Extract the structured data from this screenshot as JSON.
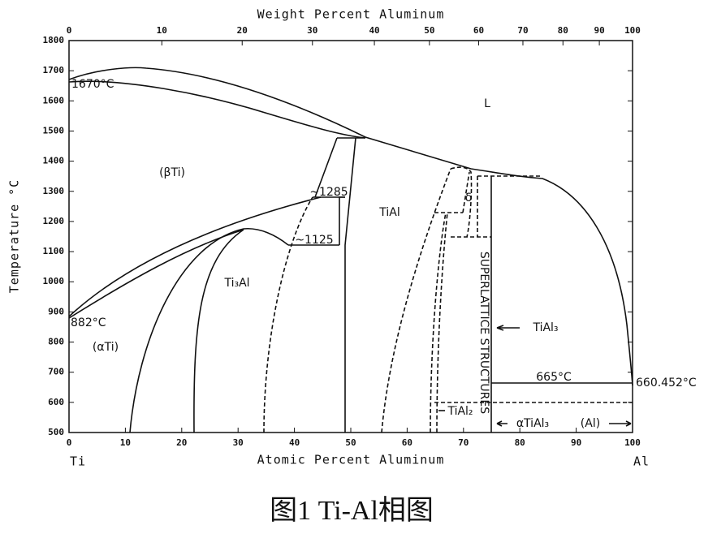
{
  "chart_data": {
    "type": "phase-diagram",
    "x2label": "Weight Percent Aluminum",
    "xlabel": "Atomic Percent Aluminum",
    "ylabel": "Temperature °C",
    "left_label": "Ti",
    "right_label": "Al",
    "xlim": [
      0,
      100
    ],
    "ylim": [
      500,
      1800
    ],
    "xticks": [
      0,
      10,
      20,
      30,
      40,
      50,
      60,
      70,
      80,
      90,
      100
    ],
    "x2ticks": [
      0,
      10,
      20,
      30,
      40,
      50,
      60,
      70,
      80,
      90,
      100
    ],
    "yticks": [
      500,
      600,
      700,
      800,
      900,
      1000,
      1100,
      1200,
      1300,
      1400,
      1500,
      1600,
      1700,
      1800
    ],
    "annotations": [
      "1670°C",
      "L",
      "(βTi)",
      "~1285",
      "TiAl",
      "~1125",
      "Ti₃Al",
      "882°C",
      "(αTi)",
      "δ",
      "SUPERLATTICE STRUCTURES",
      "TiAl₃",
      "665°C",
      "660.452°C",
      "TiAl₂",
      "αTiAl₃",
      "(Al)"
    ]
  },
  "caption": "图1 Ti-Al相图"
}
